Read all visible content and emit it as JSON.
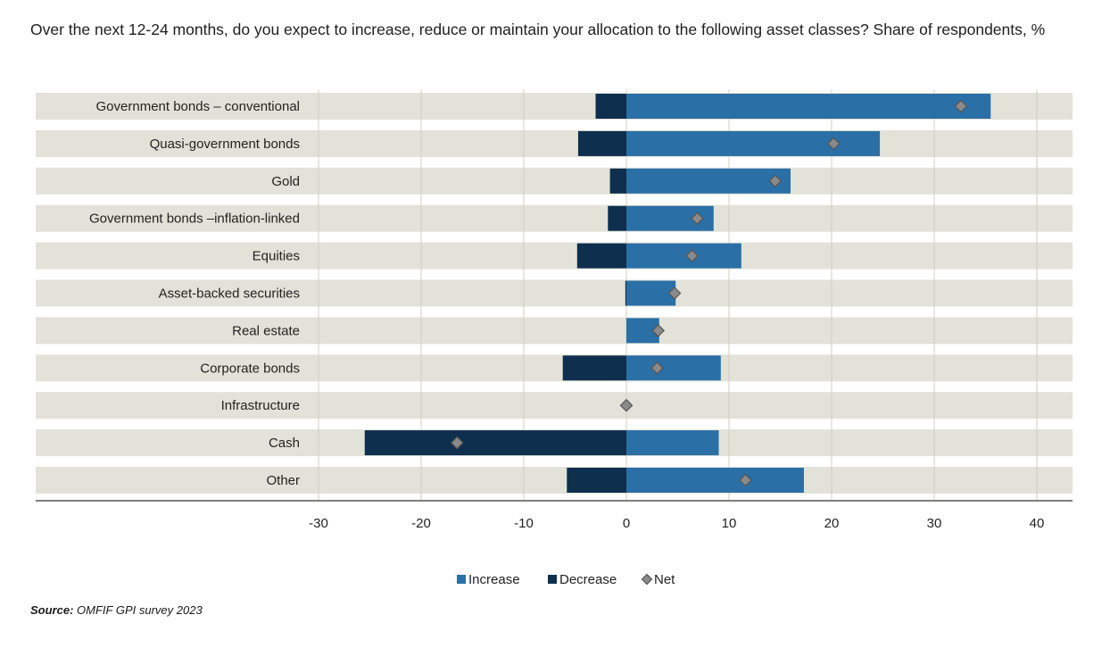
{
  "chart_data": {
    "type": "bar",
    "title": "Over the next 12-24 months, do you expect to increase, reduce or maintain your allocation to the following asset classes? Share of respondents, %",
    "categories": [
      "Government bonds – conventional",
      "Quasi-government bonds",
      "Gold",
      "Government bonds –inflation-linked",
      "Equities",
      "Asset-backed securities",
      "Real estate",
      "Corporate bonds",
      "Infrastructure",
      "Cash",
      "Other"
    ],
    "series": [
      {
        "name": "Increase",
        "values": [
          35.5,
          24.7,
          16.0,
          8.5,
          11.2,
          4.8,
          3.2,
          9.2,
          0.0,
          9.0,
          17.3
        ],
        "color": "#2a6fa6"
      },
      {
        "name": "Decrease",
        "values": [
          -3.0,
          -4.7,
          -1.6,
          -1.8,
          -4.8,
          -0.1,
          0.0,
          -6.2,
          0.0,
          -25.5,
          -5.8
        ],
        "color": "#0e2f4d"
      },
      {
        "name": "Net",
        "values": [
          32.6,
          20.2,
          14.5,
          6.9,
          6.4,
          4.7,
          3.1,
          3.0,
          0.0,
          -16.5,
          11.6
        ],
        "marker": "diamond",
        "color": "#8a8a8a"
      }
    ],
    "xlim": [
      -30,
      40
    ],
    "xticks": [
      "-30",
      "-20",
      "-10",
      "0",
      "10",
      "20",
      "30",
      "40"
    ],
    "legend_position": "bottom",
    "row_background": "#e2e2d8",
    "grid": true
  },
  "source_label": "Source:",
  "source_text": "OMFIF GPI survey 2023"
}
